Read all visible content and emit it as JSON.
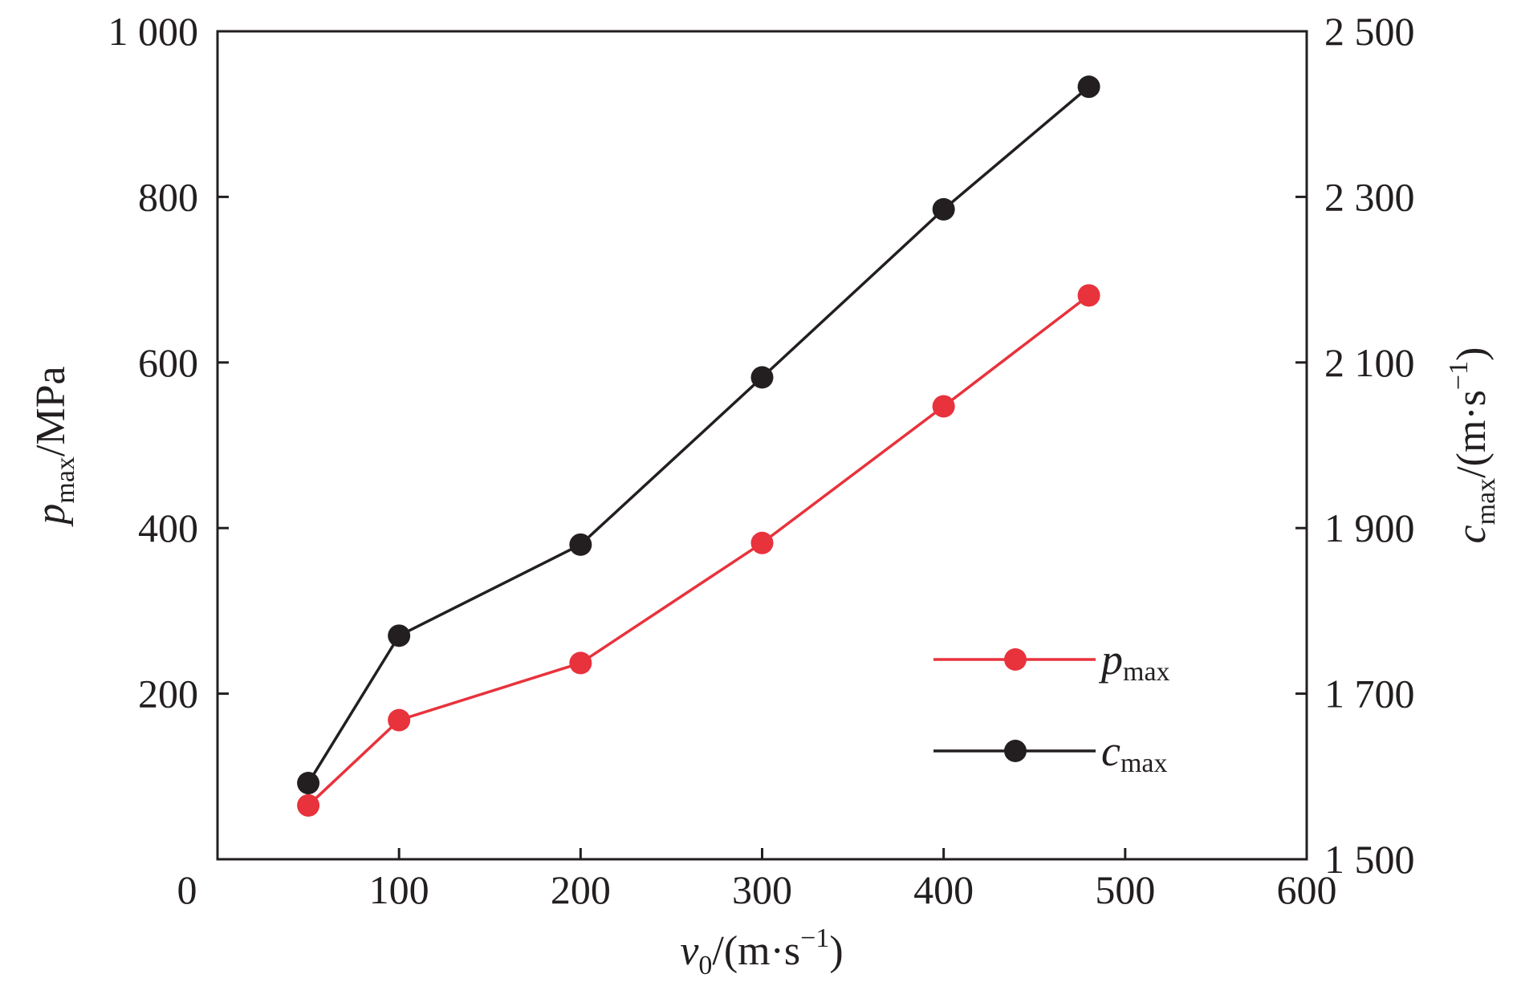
{
  "chart_data": {
    "type": "line",
    "x": [
      50,
      100,
      200,
      300,
      400,
      480
    ],
    "xlim": [
      0,
      600
    ],
    "x_ticks": [
      0,
      100,
      200,
      300,
      400,
      500,
      600
    ],
    "x_tick_labels": [
      "0",
      "100",
      "200",
      "300",
      "400",
      "500",
      "600"
    ],
    "xlabel": {
      "symbol": "v",
      "subscript": "0",
      "unit": "/(m·s",
      "unit_exp": "−1",
      "unit_close": ")"
    },
    "y_left": {
      "lim": [
        0,
        1000
      ],
      "ticks": [
        200,
        400,
        600,
        800,
        1000
      ],
      "tick_labels": [
        "200",
        "400",
        "600",
        "800",
        "1 000"
      ],
      "label": {
        "symbol": "p",
        "subscript": "max",
        "unit": "/MPa"
      }
    },
    "y_right": {
      "lim": [
        1500,
        2500
      ],
      "ticks": [
        1500,
        1700,
        1900,
        2100,
        2300,
        2500
      ],
      "tick_labels": [
        "1 500",
        "1 700",
        "1 900",
        "2 100",
        "2 300",
        "2 500"
      ],
      "label": {
        "symbol": "c",
        "subscript": "max",
        "unit": "/(m·s",
        "unit_exp": "−1",
        "unit_close": ")"
      }
    },
    "series": [
      {
        "name": "p_max",
        "legend_symbol": "p",
        "legend_subscript": "max",
        "axis": "left",
        "color": "#e8323c",
        "values": [
          65,
          168,
          237,
          382,
          547,
          681
        ]
      },
      {
        "name": "c_max",
        "legend_symbol": "c",
        "legend_subscript": "max",
        "axis": "right",
        "color": "#231f20",
        "values": [
          1592,
          1770,
          1880,
          2082,
          2285,
          2433
        ]
      }
    ],
    "legend_position": "bottom-right",
    "grid": false
  }
}
